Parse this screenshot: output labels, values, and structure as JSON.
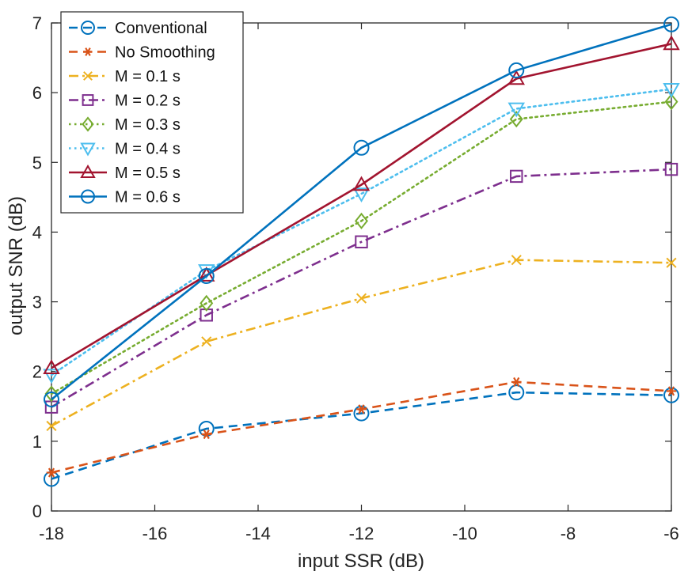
{
  "chart_data": {
    "type": "line",
    "title": "",
    "xlabel": "input SSR (dB)",
    "ylabel": "output SNR (dB)",
    "xlim": [
      -18,
      -6
    ],
    "ylim": [
      0,
      7
    ],
    "xticks": [
      -18,
      -16,
      -14,
      -12,
      -10,
      -8,
      -6
    ],
    "yticks": [
      0,
      1,
      2,
      3,
      4,
      5,
      6,
      7
    ],
    "grid": false,
    "legend_position": "top-left",
    "x": [
      -18,
      -15,
      -12,
      -9,
      -6
    ],
    "series": [
      {
        "name": "Conventional",
        "color": "#0072BD",
        "dash": "dashed",
        "marker": "circle",
        "values": [
          0.46,
          1.18,
          1.4,
          1.7,
          1.66
        ]
      },
      {
        "name": "No Smoothing",
        "color": "#D95319",
        "dash": "dashed",
        "marker": "asterisk",
        "values": [
          0.55,
          1.1,
          1.46,
          1.85,
          1.72
        ]
      },
      {
        "name": "M = 0.1 s",
        "color": "#EDB120",
        "dash": "dashdot",
        "marker": "x",
        "values": [
          1.22,
          2.43,
          3.05,
          3.6,
          3.56
        ]
      },
      {
        "name": "M = 0.2 s",
        "color": "#7E2F8E",
        "dash": "dashdot",
        "marker": "square",
        "values": [
          1.49,
          2.81,
          3.86,
          4.8,
          4.9
        ]
      },
      {
        "name": "M = 0.3 s",
        "color": "#77AC30",
        "dash": "dotted",
        "marker": "diamond",
        "values": [
          1.68,
          2.98,
          4.16,
          5.62,
          5.87
        ]
      },
      {
        "name": "M = 0.4 s",
        "color": "#4DBEEE",
        "dash": "dotted",
        "marker": "triangle-down",
        "values": [
          1.95,
          3.45,
          4.55,
          5.77,
          6.05
        ]
      },
      {
        "name": "M = 0.5 s",
        "color": "#A2142F",
        "dash": "solid",
        "marker": "triangle-up",
        "values": [
          2.05,
          3.38,
          4.68,
          6.2,
          6.7
        ]
      },
      {
        "name": "M = 0.6 s",
        "color": "#0072BD",
        "dash": "solid",
        "marker": "circle",
        "values": [
          1.6,
          3.37,
          5.21,
          6.32,
          6.98
        ]
      }
    ]
  }
}
